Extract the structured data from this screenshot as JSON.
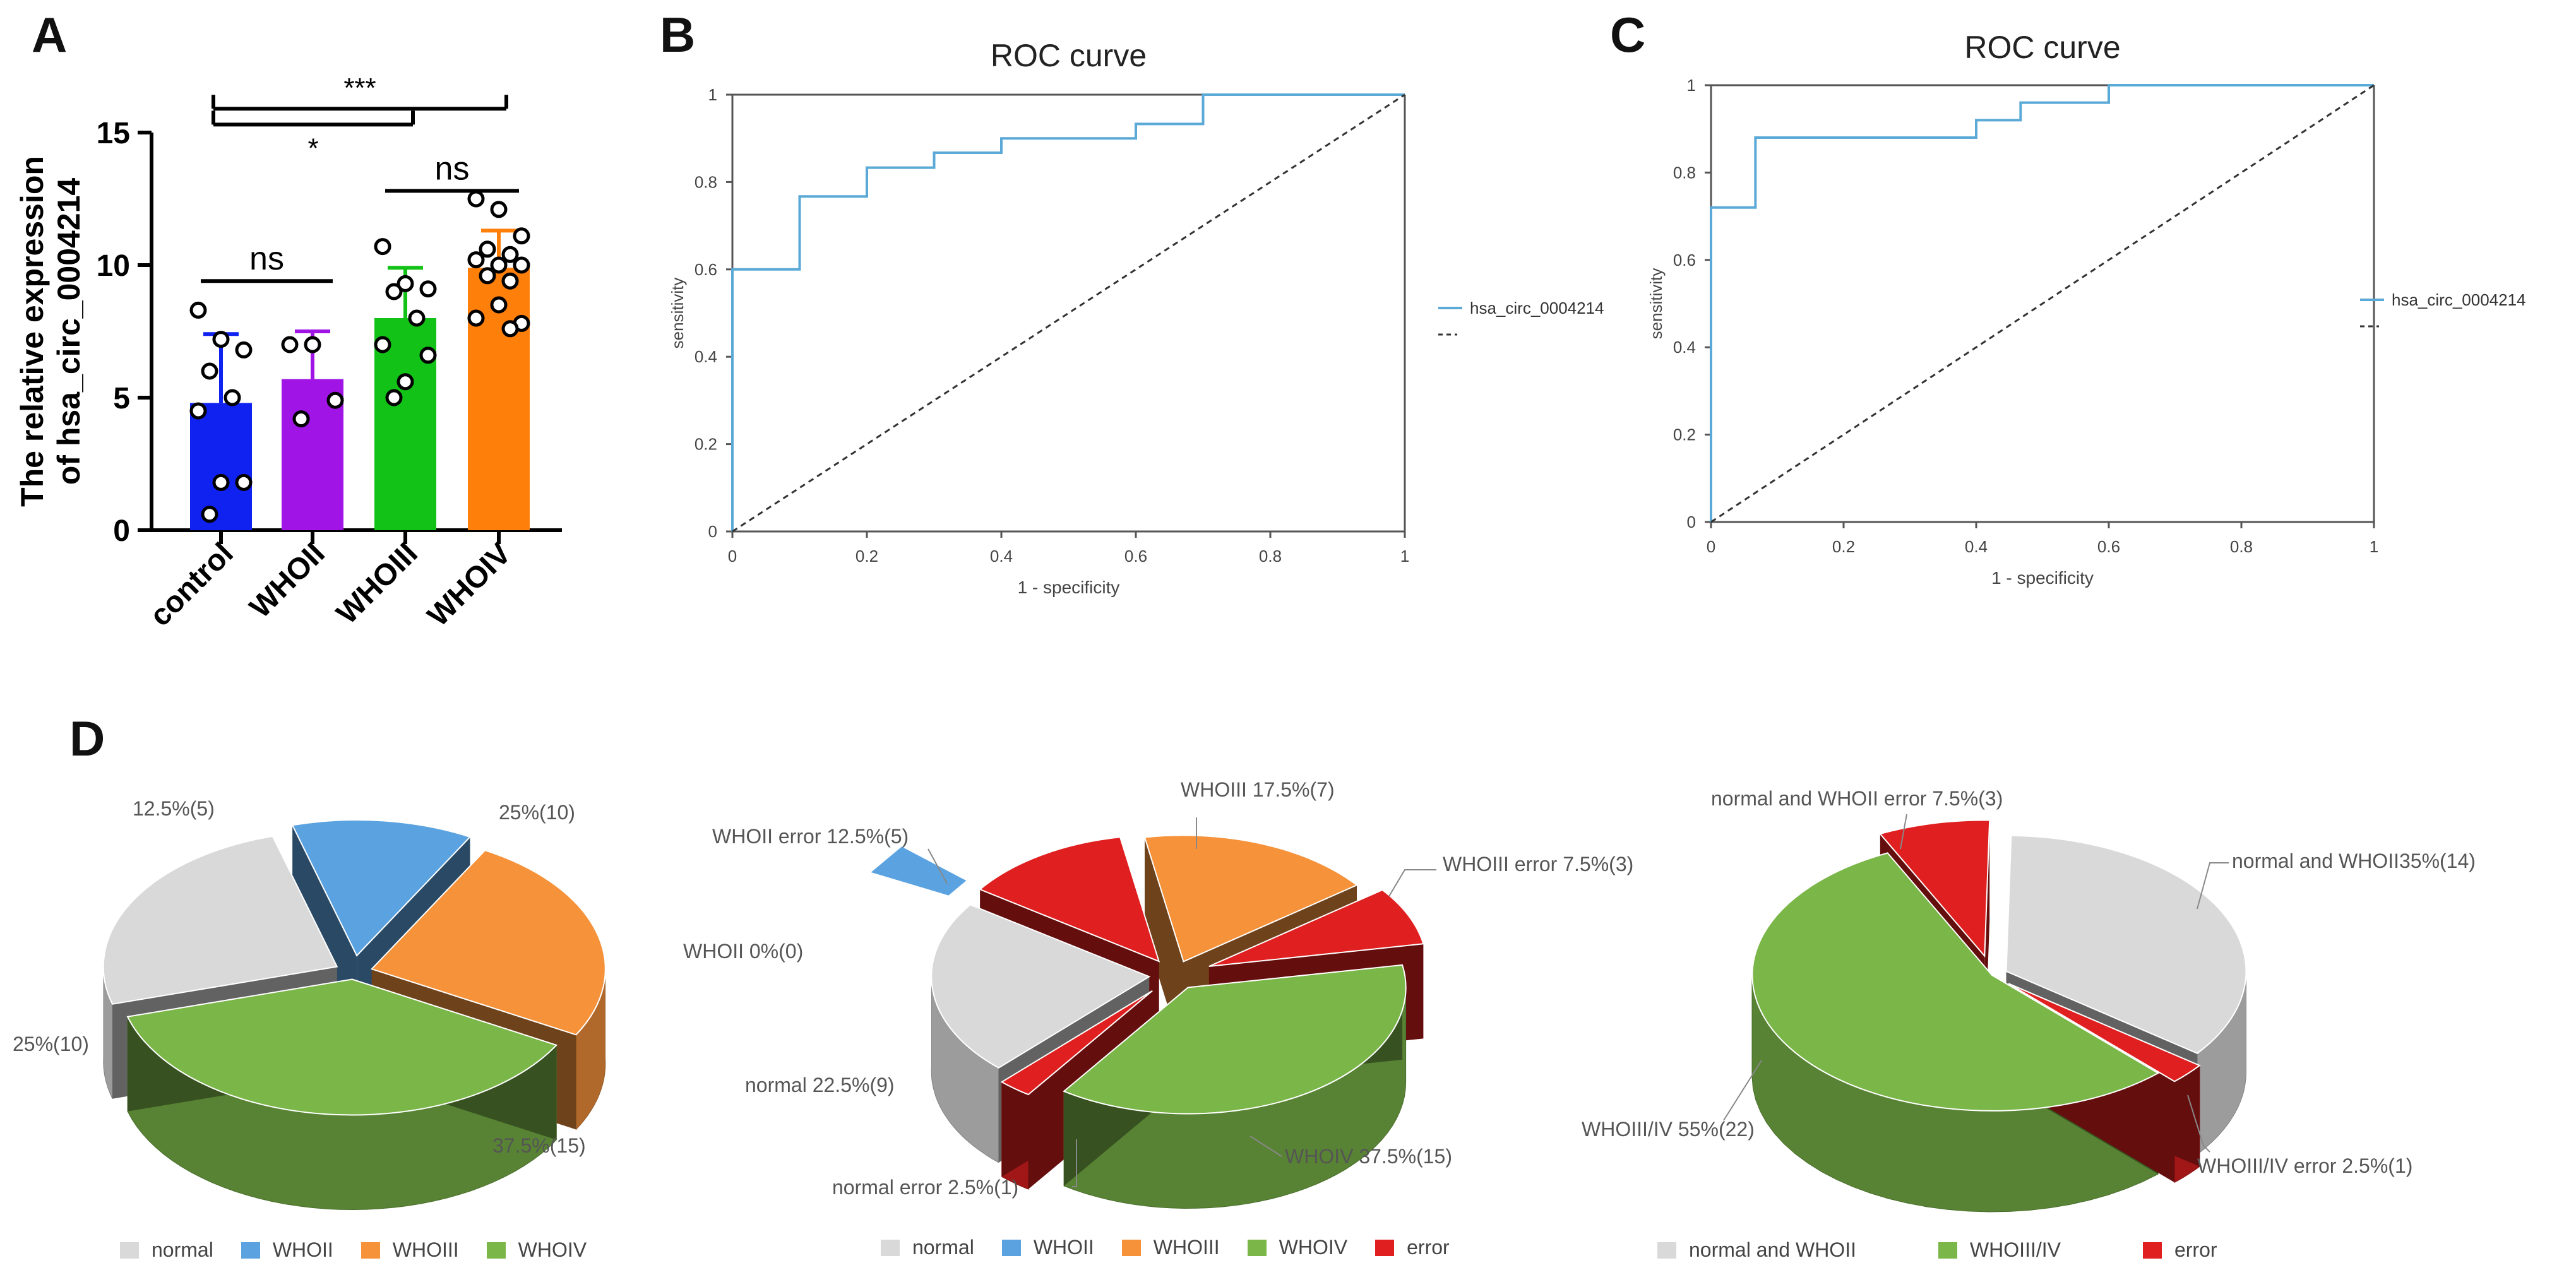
{
  "panels": {
    "a": "A",
    "b": "B",
    "c": "C",
    "d": "D"
  },
  "colors": {
    "control": "#1022f0",
    "whoii": "#a114e6",
    "whoiii": "#12c216",
    "whoiv": "#ff7f0b",
    "roc_line": "#5aa9d6",
    "pie_normal": "#d9d9d9",
    "pie_whoii": "#5ba3e0",
    "pie_whoiii": "#f5923a",
    "pie_whoiv": "#7ab648",
    "pie_error": "#e02020"
  },
  "chart_data": [
    {
      "id": "A",
      "type": "bar",
      "ylabel": "The relative expression of hsa_circ_0004214",
      "ylabel_lines": [
        "The relative expression",
        "of hsa_circ_0004214"
      ],
      "categories": [
        "control",
        "WHOII",
        "WHOIII",
        "WHOIV"
      ],
      "values": [
        4.8,
        5.7,
        8.0,
        9.9
      ],
      "errors": [
        2.6,
        1.8,
        1.9,
        1.4
      ],
      "ylim": [
        0,
        15
      ],
      "yticks": [
        0,
        5,
        10,
        15
      ],
      "points": [
        [
          8.3,
          7.2,
          6.8,
          6.0,
          5.0,
          4.5,
          1.8,
          1.8,
          0.6
        ],
        [
          7.0,
          7.0,
          4.9,
          4.2
        ],
        [
          10.7,
          9.3,
          9.1,
          9.0,
          8.0,
          7.0,
          6.6,
          5.6,
          5.0
        ],
        [
          12.5,
          12.1,
          11.1,
          10.6,
          10.4,
          10.2,
          10.0,
          10.0,
          9.6,
          9.4,
          8.5,
          8.0,
          7.8,
          7.6
        ]
      ],
      "significance": [
        {
          "from": 0,
          "to": 1,
          "label": "ns",
          "y": 9.4
        },
        {
          "from": 2,
          "to": 3,
          "label": "ns",
          "y": 12.8
        },
        {
          "from": 0,
          "to": 2,
          "label": "*",
          "y": 15.3
        },
        {
          "from": 0,
          "to": 3,
          "label": "***",
          "y": 15.9
        }
      ]
    },
    {
      "id": "B",
      "type": "line",
      "title": "ROC curve",
      "xlabel": "1 - specificity",
      "ylabel": "sensitivity",
      "xlim": [
        0,
        1
      ],
      "ylim": [
        0,
        1
      ],
      "xticks": [
        "0",
        "0.2",
        "0.4",
        "0.6",
        "0.8",
        "1"
      ],
      "yticks": [
        "0",
        "0.2",
        "0.4",
        "0.6",
        "0.8",
        "1"
      ],
      "series": [
        {
          "name": "hsa_circ_0004214",
          "style": "solid",
          "x": [
            0,
            0,
            0,
            0.1,
            0.1,
            0.2,
            0.2,
            0.3,
            0.3,
            0.4,
            0.4,
            0.6,
            0.6,
            0.7,
            0.7,
            1.0
          ],
          "y": [
            0,
            0,
            0.6,
            0.6,
            0.767,
            0.767,
            0.833,
            0.833,
            0.867,
            0.867,
            0.9,
            0.9,
            0.933,
            0.933,
            1.0,
            1.0
          ]
        },
        {
          "name": "",
          "legend_label": "---",
          "style": "dashed",
          "x": [
            0,
            1
          ],
          "y": [
            0,
            1
          ]
        }
      ]
    },
    {
      "id": "C",
      "type": "line",
      "title": "ROC curve",
      "xlabel": "1 - specificity",
      "ylabel": "sensitivity",
      "xlim": [
        0,
        1
      ],
      "ylim": [
        0,
        1
      ],
      "xticks": [
        "0",
        "0.2",
        "0.4",
        "0.6",
        "0.8",
        "1"
      ],
      "yticks": [
        "0",
        "0.2",
        "0.4",
        "0.6",
        "0.8",
        "1"
      ],
      "series": [
        {
          "name": "hsa_circ_0004214",
          "style": "solid",
          "x": [
            0,
            0,
            0.067,
            0.067,
            0.4,
            0.4,
            0.467,
            0.467,
            0.6,
            0.6,
            1.0
          ],
          "y": [
            0,
            0.72,
            0.72,
            0.88,
            0.88,
            0.92,
            0.92,
            0.96,
            0.96,
            1.0,
            1.0
          ]
        },
        {
          "name": "",
          "legend_label": "---",
          "style": "dashed",
          "x": [
            0,
            1
          ],
          "y": [
            0,
            1
          ]
        }
      ]
    },
    {
      "id": "D1",
      "type": "pie",
      "slices": [
        {
          "name": "WHOII",
          "value": 12.5,
          "label": "12.5%(5)",
          "color": "#5ba3e0"
        },
        {
          "name": "WHOIII",
          "value": 25,
          "label": "25%(10)",
          "color": "#f5923a"
        },
        {
          "name": "WHOIV",
          "value": 37.5,
          "label": "37.5%(15)",
          "color": "#7ab648"
        },
        {
          "name": "normal",
          "value": 25,
          "label": "25%(10)",
          "color": "#d9d9d9"
        }
      ],
      "legend": [
        "normal",
        "WHOII",
        "WHOIII",
        "WHOIV"
      ]
    },
    {
      "id": "D2",
      "type": "pie",
      "slices": [
        {
          "name": "WHOIII",
          "value": 17.5,
          "label": "WHOIII 17.5%(7)",
          "color": "#f5923a"
        },
        {
          "name": "WHOIII error",
          "value": 7.5,
          "label": "WHOIII error 7.5%(3)",
          "color": "#e02020"
        },
        {
          "name": "WHOIV",
          "value": 37.5,
          "label": "WHOIV 37.5%(15)",
          "color": "#7ab648"
        },
        {
          "name": "normal error",
          "value": 2.5,
          "label": "normal error 2.5%(1)",
          "color": "#e02020"
        },
        {
          "name": "normal",
          "value": 22.5,
          "label": "normal  22.5%(9)",
          "color": "#d9d9d9"
        },
        {
          "name": "WHOII",
          "value": 0,
          "label": "WHOII 0%(0)",
          "color": "#5ba3e0"
        },
        {
          "name": "WHOII error",
          "value": 12.5,
          "label": "WHOII error 12.5%(5)",
          "color": "#e02020"
        }
      ],
      "legend": [
        "normal",
        "WHOII",
        "WHOIII",
        "WHOIV",
        "error"
      ]
    },
    {
      "id": "D3",
      "type": "pie",
      "slices": [
        {
          "name": "normal and WHOII",
          "value": 35,
          "label": "normal and WHOII35%(14)",
          "color": "#d9d9d9"
        },
        {
          "name": "WHOIII/IV error",
          "value": 2.5,
          "label": "WHOIII/IV error 2.5%(1)",
          "color": "#e02020"
        },
        {
          "name": "WHOIII/IV",
          "value": 55,
          "label": "WHOIII/IV 55%(22)",
          "color": "#7ab648"
        },
        {
          "name": "normal and WHOII error",
          "value": 7.5,
          "label": "normal and WHOII error 7.5%(3)",
          "color": "#e02020"
        }
      ],
      "legend": [
        "normal and WHOII",
        "WHOIII/IV",
        "error"
      ]
    }
  ]
}
